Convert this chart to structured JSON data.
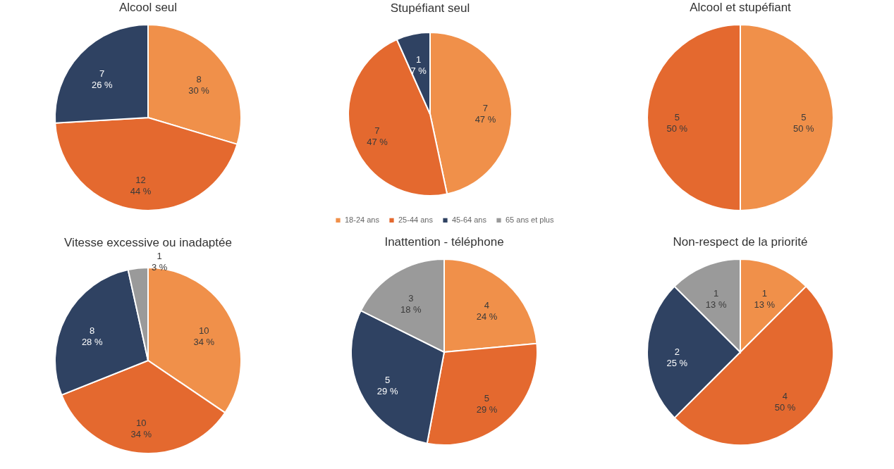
{
  "chart_data": [
    {
      "type": "pie",
      "title": "Alcool seul",
      "categories": [
        null,
        null,
        null
      ],
      "values": [
        8,
        12,
        7
      ],
      "colors": [
        "#f0904a",
        "#e4692f",
        "#2f4262"
      ],
      "value_labels": [
        "8\n30 %",
        "12\n44 %",
        "7\n26 %"
      ],
      "legend": false
    },
    {
      "type": "pie",
      "title": "Stupéfiant seul",
      "categories": [
        "18-24 ans",
        "25-44 ans",
        "45-64 ans",
        "65 ans et plus"
      ],
      "values": [
        7,
        7,
        1,
        0
      ],
      "colors": [
        "#f0904a",
        "#e4692f",
        "#2f4262",
        "#9a9a9a"
      ],
      "value_labels": [
        "7\n47 %",
        "7\n47 %",
        "1\n7 %",
        null
      ],
      "legend": "bottom"
    },
    {
      "type": "pie",
      "title": "Alcool et stupéfiant",
      "categories": [
        null,
        null
      ],
      "values": [
        5,
        5
      ],
      "colors": [
        "#f0904a",
        "#e4692f"
      ],
      "value_labels": [
        "5\n50 %",
        "5\n50 %"
      ],
      "legend": false
    },
    {
      "type": "pie",
      "title": "Vitesse excessive ou inadaptée",
      "categories": [
        null,
        null,
        null,
        null
      ],
      "values": [
        10,
        10,
        8,
        1
      ],
      "colors": [
        "#f0904a",
        "#e4692f",
        "#2f4262",
        "#9a9a9a"
      ],
      "value_labels": [
        "10\n34 %",
        "10\n34 %",
        "8\n28 %",
        "1\n3 %"
      ],
      "legend": false
    },
    {
      "type": "pie",
      "title": "Inattention - téléphone",
      "categories": [
        null,
        null,
        null,
        null
      ],
      "values": [
        4,
        5,
        5,
        3
      ],
      "colors": [
        "#f0904a",
        "#e4692f",
        "#2f4262",
        "#9a9a9a"
      ],
      "value_labels": [
        "4\n24 %",
        "5\n29 %",
        "5\n29 %",
        "3\n18 %"
      ],
      "legend": false
    },
    {
      "type": "pie",
      "title": "Non-respect de la priorité",
      "categories": [
        null,
        null,
        null,
        null
      ],
      "values": [
        1,
        4,
        2,
        1
      ],
      "colors": [
        "#f0904a",
        "#e4692f",
        "#2f4262",
        "#9a9a9a"
      ],
      "value_labels": [
        "1\n13 %",
        "4\n50 %",
        "2\n25 %",
        "1\n13 %"
      ],
      "legend": false
    }
  ]
}
